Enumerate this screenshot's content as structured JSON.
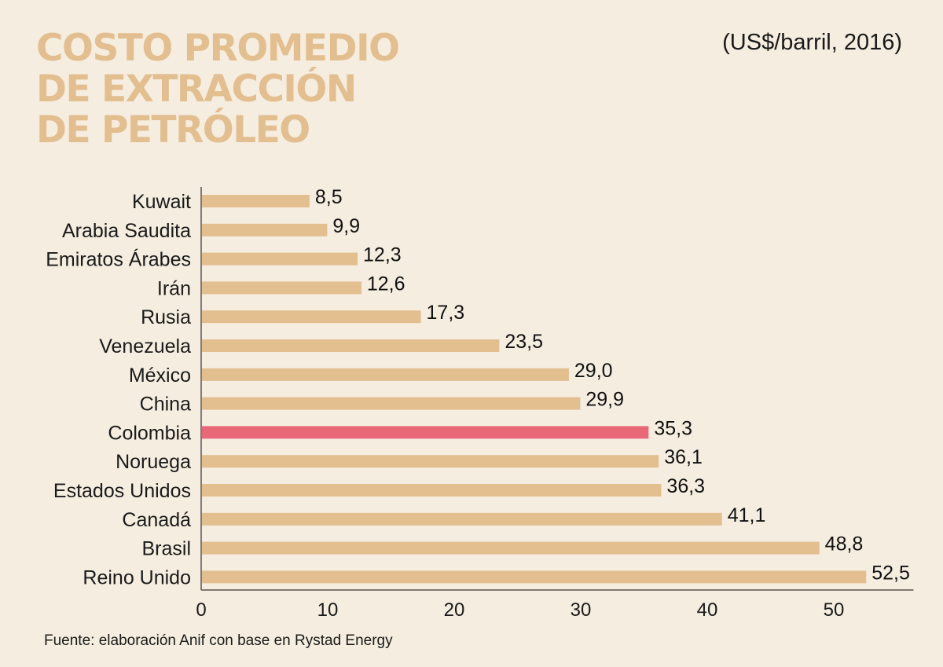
{
  "colors": {
    "background": "#f5ede0",
    "bar": "#e3be8f",
    "highlight": "#e96877",
    "title": "#e3be8f",
    "axis": "#5a5450",
    "text": "#1a1a1a"
  },
  "chart_data": {
    "type": "bar",
    "orientation": "horizontal",
    "title": [
      "COSTO PROMEDIO",
      "DE EXTRACCIÓN",
      "DE PETRÓLEO"
    ],
    "subtitle": "(US$/barril, 2016)",
    "source": "Fuente: elaboración Anif con base en Rystad Energy",
    "xlabel": "",
    "ylabel": "",
    "xlim": [
      0,
      56.3
    ],
    "xticks": [
      0,
      10,
      20,
      30,
      40,
      50
    ],
    "grid": false,
    "highlight": "Colombia",
    "categories": [
      "Kuwait",
      "Arabia Saudita",
      "Emiratos Árabes",
      "Irán",
      "Rusia",
      "Venezuela",
      "México",
      "China",
      "Colombia",
      "Noruega",
      "Estados Unidos",
      "Canadá",
      "Brasil",
      "Reino Unido"
    ],
    "values": [
      8.5,
      9.9,
      12.3,
      12.6,
      17.3,
      23.5,
      29.0,
      29.9,
      35.3,
      36.1,
      36.3,
      41.1,
      48.8,
      52.5
    ],
    "value_labels": [
      "8,5",
      "9,9",
      "12,3",
      "12,6",
      "17,3",
      "23,5",
      "29,0",
      "29,9",
      "35,3",
      "36,1",
      "36,3",
      "41,1",
      "48,8",
      "52,5"
    ]
  }
}
